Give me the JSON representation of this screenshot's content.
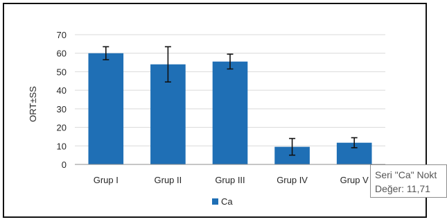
{
  "chart_data": {
    "type": "bar",
    "categories": [
      "Grup I",
      "Grup II",
      "Grup III",
      "Grup IV",
      "Grup V"
    ],
    "series": [
      {
        "name": "Ca",
        "values": [
          60,
          54,
          55.5,
          9.5,
          11.71
        ],
        "error": [
          3.5,
          9.5,
          4,
          4.5,
          2.7
        ],
        "color": "#1f6fb5"
      }
    ],
    "ylabel": "ORT±SS",
    "xlabel": "",
    "ylim": [
      0,
      70
    ],
    "yticks": [
      0,
      10,
      20,
      30,
      40,
      50,
      60,
      70
    ],
    "grid": true,
    "legend": "bottom"
  },
  "tooltip": {
    "line1": "Seri \"Ca\" Nokt",
    "line2": "Değer: 11,71"
  }
}
